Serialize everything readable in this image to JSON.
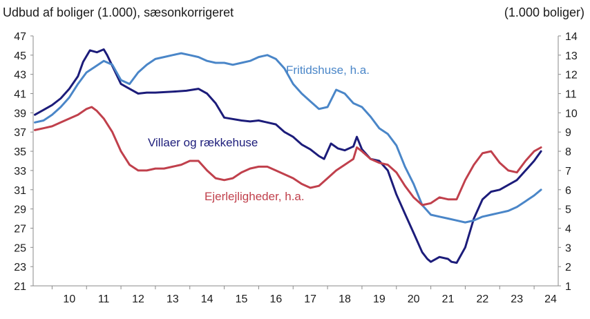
{
  "chart_data": {
    "type": "line",
    "title": "Udbud af boliger (1.000), sæsonkorrigeret",
    "right_axis_title": "(1.000 boliger)",
    "xlabel": "",
    "ylabel": "",
    "x_tick_labels": [
      "10",
      "11",
      "12",
      "13",
      "14",
      "15",
      "16",
      "17",
      "18",
      "19",
      "20",
      "21",
      "22",
      "23",
      "24"
    ],
    "x_range": [
      2009.45,
      2024.7
    ],
    "y_left": {
      "range": [
        21,
        47
      ],
      "ticks": [
        21,
        23,
        25,
        27,
        29,
        31,
        33,
        35,
        37,
        39,
        41,
        43,
        45,
        47
      ]
    },
    "y_right": {
      "range": [
        1,
        14
      ],
      "ticks": [
        1,
        2,
        3,
        4,
        5,
        6,
        7,
        8,
        9,
        10,
        11,
        12,
        13,
        14
      ]
    },
    "grid": false,
    "series": [
      {
        "name": "Villaer og rækkehuse",
        "axis": "left",
        "color": "#1c1c7a",
        "x": [
          2009.5,
          2009.75,
          2010.0,
          2010.25,
          2010.5,
          2010.75,
          2010.9,
          2011.1,
          2011.3,
          2011.5,
          2011.6,
          2011.8,
          2012.0,
          2012.25,
          2012.5,
          2012.75,
          2013.0,
          2013.5,
          2013.9,
          2014.25,
          2014.5,
          2014.75,
          2015.0,
          2015.5,
          2015.75,
          2016.0,
          2016.25,
          2016.5,
          2016.75,
          2017.0,
          2017.25,
          2017.5,
          2017.75,
          2017.9,
          2018.1,
          2018.3,
          2018.5,
          2018.75,
          2018.85,
          2019.0,
          2019.25,
          2019.5,
          2019.75,
          2020.0,
          2020.25,
          2020.5,
          2020.75,
          2020.9,
          2021.0,
          2021.25,
          2021.5,
          2021.6,
          2021.75,
          2022.0,
          2022.25,
          2022.5,
          2022.75,
          2023.0,
          2023.25,
          2023.5,
          2023.75,
          2024.0,
          2024.2
        ],
        "values": [
          38.8,
          39.3,
          39.8,
          40.5,
          41.5,
          42.8,
          44.3,
          45.5,
          45.3,
          45.6,
          45.0,
          43.5,
          42.0,
          41.5,
          41.0,
          41.1,
          41.1,
          41.2,
          41.3,
          41.5,
          41.0,
          40.0,
          38.5,
          38.2,
          38.1,
          38.2,
          38.0,
          37.8,
          37.0,
          36.5,
          35.7,
          35.2,
          34.5,
          34.2,
          35.8,
          35.3,
          35.1,
          35.5,
          36.5,
          35.2,
          34.2,
          34.0,
          33.0,
          30.5,
          28.5,
          26.5,
          24.5,
          23.8,
          23.5,
          24.0,
          23.8,
          23.5,
          23.4,
          25.0,
          28.0,
          30.0,
          30.8,
          31.0,
          31.5,
          32.0,
          33.0,
          34.0,
          35.0
        ]
      },
      {
        "name": "Fritidshuse, h.a.",
        "axis": "right",
        "color": "#4a86c8",
        "x": [
          2009.5,
          2009.75,
          2010.0,
          2010.25,
          2010.5,
          2010.75,
          2011.0,
          2011.25,
          2011.5,
          2011.75,
          2012.0,
          2012.25,
          2012.5,
          2012.75,
          2013.0,
          2013.25,
          2013.5,
          2013.75,
          2014.0,
          2014.25,
          2014.5,
          2014.75,
          2015.0,
          2015.25,
          2015.5,
          2015.75,
          2016.0,
          2016.25,
          2016.5,
          2016.75,
          2017.0,
          2017.25,
          2017.5,
          2017.75,
          2018.0,
          2018.25,
          2018.5,
          2018.75,
          2019.0,
          2019.25,
          2019.5,
          2019.75,
          2020.0,
          2020.25,
          2020.5,
          2020.75,
          2020.9,
          2021.0,
          2021.25,
          2021.5,
          2021.75,
          2022.0,
          2022.25,
          2022.5,
          2022.75,
          2023.0,
          2023.25,
          2023.5,
          2023.75,
          2024.0,
          2024.2
        ],
        "values": [
          9.5,
          9.6,
          9.9,
          10.3,
          10.8,
          11.5,
          12.1,
          12.4,
          12.7,
          12.5,
          11.7,
          11.5,
          12.1,
          12.5,
          12.8,
          12.9,
          13.0,
          13.1,
          13.0,
          12.9,
          12.7,
          12.6,
          12.6,
          12.5,
          12.6,
          12.7,
          12.9,
          13.0,
          12.8,
          12.3,
          11.5,
          11.0,
          10.6,
          10.2,
          10.3,
          11.2,
          11.0,
          10.5,
          10.3,
          9.8,
          9.2,
          8.9,
          8.3,
          7.2,
          6.3,
          5.2,
          4.9,
          4.7,
          4.6,
          4.5,
          4.4,
          4.3,
          4.4,
          4.6,
          4.7,
          4.8,
          4.9,
          5.1,
          5.4,
          5.7,
          6.0
        ]
      },
      {
        "name": "Ejerlejligheder, h.a.",
        "axis": "right",
        "color": "#c0404c",
        "x": [
          2009.5,
          2009.75,
          2010.0,
          2010.25,
          2010.5,
          2010.75,
          2011.0,
          2011.15,
          2011.3,
          2011.5,
          2011.75,
          2012.0,
          2012.25,
          2012.5,
          2012.75,
          2013.0,
          2013.25,
          2013.5,
          2013.75,
          2014.0,
          2014.25,
          2014.5,
          2014.75,
          2015.0,
          2015.25,
          2015.5,
          2015.75,
          2016.0,
          2016.25,
          2016.5,
          2016.75,
          2017.0,
          2017.25,
          2017.5,
          2017.75,
          2018.0,
          2018.25,
          2018.5,
          2018.75,
          2018.85,
          2019.0,
          2019.25,
          2019.5,
          2019.75,
          2020.0,
          2020.25,
          2020.5,
          2020.75,
          2021.0,
          2021.25,
          2021.5,
          2021.75,
          2022.0,
          2022.25,
          2022.5,
          2022.75,
          2023.0,
          2023.25,
          2023.5,
          2023.75,
          2024.0,
          2024.2
        ],
        "values": [
          9.1,
          9.2,
          9.3,
          9.5,
          9.7,
          9.9,
          10.2,
          10.3,
          10.1,
          9.7,
          9.0,
          8.0,
          7.3,
          7.0,
          7.0,
          7.1,
          7.1,
          7.2,
          7.3,
          7.5,
          7.5,
          7.0,
          6.6,
          6.5,
          6.6,
          6.9,
          7.1,
          7.2,
          7.2,
          7.0,
          6.8,
          6.6,
          6.3,
          6.1,
          6.2,
          6.6,
          7.0,
          7.3,
          7.6,
          8.2,
          8.0,
          7.6,
          7.4,
          7.3,
          6.9,
          6.2,
          5.6,
          5.2,
          5.3,
          5.6,
          5.5,
          5.5,
          6.5,
          7.3,
          7.9,
          8.0,
          7.4,
          7.0,
          6.9,
          7.5,
          8.0,
          8.2
        ]
      }
    ]
  }
}
